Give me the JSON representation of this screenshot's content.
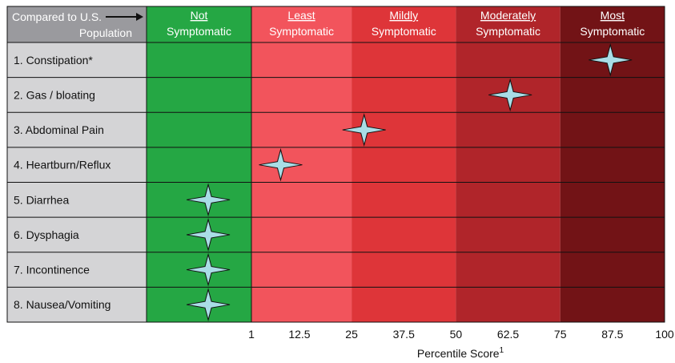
{
  "chart_data": {
    "type": "scatter",
    "corner_label": {
      "line1": "Compared to U.S.",
      "line2": "Population"
    },
    "columns": [
      {
        "top": "Not",
        "bottom": "Symptomatic",
        "x_range": [
          -16,
          1
        ],
        "color": "#25a744"
      },
      {
        "top": "Least",
        "bottom": "Symptomatic",
        "x_range": [
          1,
          25
        ],
        "color": "#f2545c"
      },
      {
        "top": "Mildly",
        "bottom": "Symptomatic",
        "x_range": [
          25,
          50
        ],
        "color": "#de3539"
      },
      {
        "top": "Moderately",
        "bottom": "Symptomatic",
        "x_range": [
          50,
          75
        ],
        "color": "#b0252a"
      },
      {
        "top": "Most",
        "bottom": "Symptomatic",
        "x_range": [
          75,
          100
        ],
        "color": "#721316"
      }
    ],
    "categories": [
      "1. Constipation*",
      "2. Gas / bloating",
      "3. Abdominal Pain",
      "4. Heartburn/Reflux",
      "5. Diarrhea",
      "6. Dysphagia",
      "7. Incontinence",
      "8. Nausea/Vomiting"
    ],
    "values": [
      87,
      63,
      28,
      8,
      -6,
      -6,
      -6,
      -6
    ],
    "x_ticks": [
      "1",
      "12.5",
      "25",
      "37.5",
      "50",
      "62.5",
      "75",
      "87.5",
      "100"
    ],
    "xlabel": "Percentile Score",
    "xlabel_superscript": "1",
    "marker_color": "#a9dde6",
    "label_column_color": "#d4d4d6",
    "header_label_color": "#9a9a9e"
  }
}
